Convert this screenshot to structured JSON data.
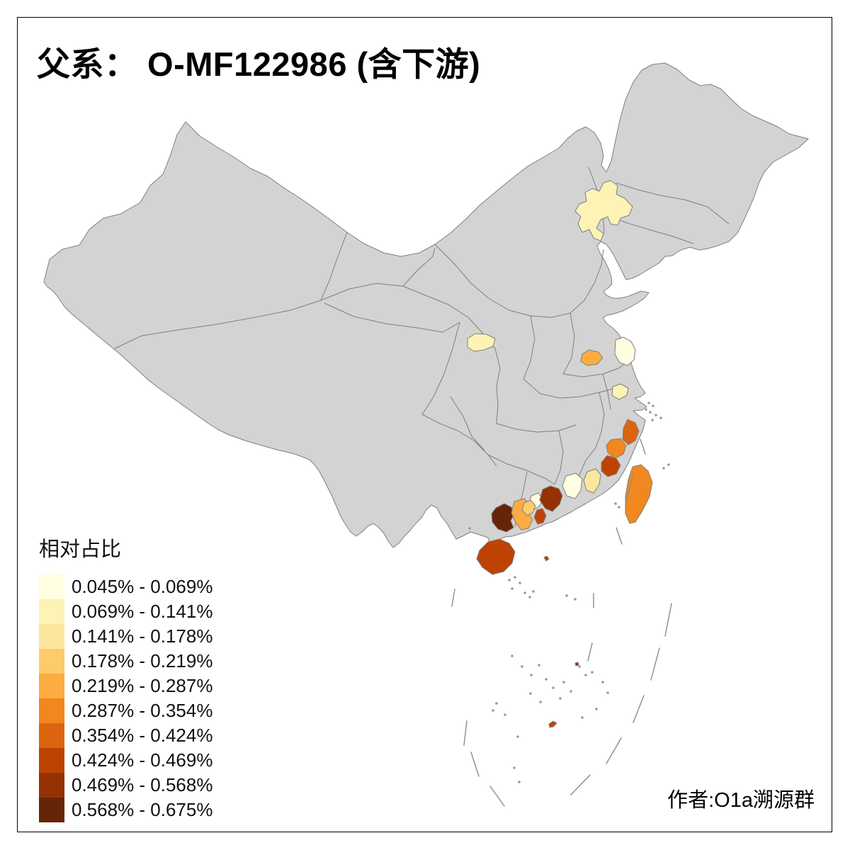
{
  "title": {
    "full": "父系： O-MF122986 (含下游)"
  },
  "attribution": "作者:O1a溯源群",
  "legend": {
    "title": "相对占比",
    "classes": [
      {
        "label": "0.045% - 0.069%",
        "color": "#FFFEE0"
      },
      {
        "label": "0.069% - 0.141%",
        "color": "#FCF3B5"
      },
      {
        "label": "0.141% - 0.178%",
        "color": "#FCE69C"
      },
      {
        "label": "0.178% - 0.219%",
        "color": "#FDCB69"
      },
      {
        "label": "0.219% - 0.287%",
        "color": "#FCAC40"
      },
      {
        "label": "0.287% - 0.354%",
        "color": "#F1871F"
      },
      {
        "label": "0.354% - 0.424%",
        "color": "#DD640E"
      },
      {
        "label": "0.424% - 0.469%",
        "color": "#BE4303"
      },
      {
        "label": "0.469% - 0.568%",
        "color": "#953104"
      },
      {
        "label": "0.568% - 0.675%",
        "color": "#672508"
      }
    ]
  },
  "map": {
    "background": "#FFFFFF",
    "land_color": "#D3D3D3",
    "border_color": "#7F7F7F",
    "islet_color": "#9A9A9A",
    "dash_color": "#8C8C8C",
    "regions": [
      {
        "id": "inner-mongolia-patch",
        "class": 2,
        "value_range": "0.069% - 0.141%"
      },
      {
        "id": "shaanxi-patch",
        "class": 2,
        "value_range": "0.069% - 0.141%"
      },
      {
        "id": "henan-patch",
        "class": 5,
        "value_range": "0.219% - 0.287%"
      },
      {
        "id": "jiangsu-north-patch",
        "class": 1,
        "value_range": "0.045% - 0.069%"
      },
      {
        "id": "jiangsu-mid-patch",
        "class": 2,
        "value_range": "0.069% - 0.141%"
      },
      {
        "id": "fujian-north-patch",
        "class": 7,
        "value_range": "0.354% - 0.424%"
      },
      {
        "id": "fujian-mid-patch",
        "class": 6,
        "value_range": "0.287% - 0.354%"
      },
      {
        "id": "fujian-south-patch",
        "class": 8,
        "value_range": "0.424% - 0.469%"
      },
      {
        "id": "guangdong-east-patch",
        "class": 3,
        "value_range": "0.141% - 0.178%"
      },
      {
        "id": "guangdong-northeast-patch",
        "class": 1,
        "value_range": "0.045% - 0.069%"
      },
      {
        "id": "pearl-river-delta-patch",
        "class": 9,
        "value_range": "0.469% - 0.568%"
      },
      {
        "id": "prd-west-cream-patch",
        "class": 1,
        "value_range": "0.045% - 0.069%"
      },
      {
        "id": "prd-west-orange-patch",
        "class": 4,
        "value_range": "0.178% - 0.219%"
      },
      {
        "id": "prd-south-patch",
        "class": 8,
        "value_range": "0.424% - 0.469%"
      },
      {
        "id": "guangdong-west-orange-patch",
        "class": 5,
        "value_range": "0.219% - 0.287%"
      },
      {
        "id": "guangdong-west-brown-patch",
        "class": 10,
        "value_range": "0.568% - 0.675%"
      },
      {
        "id": "hainan-island",
        "class": 8,
        "value_range": "0.424% - 0.469%"
      },
      {
        "id": "taiwan-island",
        "class": 6,
        "value_range": "0.287% - 0.354%"
      },
      {
        "id": "paracel-islet",
        "class": 8,
        "value_range": "0.424% - 0.469%"
      },
      {
        "id": "guangdong-coastal-islet",
        "class": 8,
        "value_range": "0.424% - 0.469%"
      },
      {
        "id": "spratly-islet",
        "class": 9,
        "value_range": "0.469% - 0.568%"
      }
    ]
  }
}
